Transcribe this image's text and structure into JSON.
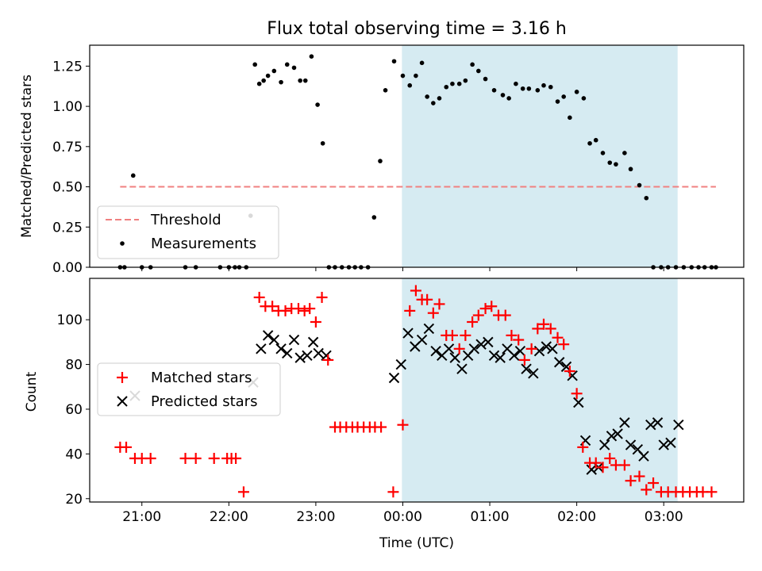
{
  "chart_data": [
    {
      "type": "scatter",
      "title": "Flux total observing time = 3.16 h",
      "xlabel": "",
      "ylabel": "Matched/Predicted stars",
      "x_unit": "hours since 00:00 UTC (x tick labels show clock time)",
      "xlim": [
        -3.6,
        3.92
      ],
      "ylim": [
        0,
        1.38
      ],
      "yticks": [
        "0.00",
        "0.25",
        "0.50",
        "0.75",
        "1.00",
        "1.25"
      ],
      "ytick_values": [
        0,
        0.25,
        0.5,
        0.75,
        1.0,
        1.25
      ],
      "highlight_span": {
        "x0": -0.01,
        "x1": 3.16,
        "color": "#add8e6"
      },
      "threshold": {
        "name": "Threshold",
        "value": 0.5,
        "x0": -3.25,
        "x1": 3.6,
        "color": "#f08080",
        "style": "dashed"
      },
      "legend": {
        "location": "lower-left",
        "entries": [
          "Threshold",
          "Measurements"
        ]
      },
      "series": [
        {
          "name": "Measurements",
          "marker": "dot",
          "color": "#000000",
          "x": [
            -3.25,
            -3.2,
            -3.1,
            -3.0,
            -2.9,
            -2.5,
            -2.38,
            -2.1,
            -2.0,
            -1.93,
            -1.88,
            -1.8,
            -1.75,
            -1.7,
            -1.65,
            -1.6,
            -1.55,
            -1.48,
            -1.4,
            -1.33,
            -1.25,
            -1.18,
            -1.12,
            -1.05,
            -0.98,
            -0.92,
            -0.85,
            -0.78,
            -0.7,
            -0.62,
            -0.55,
            -0.48,
            -0.4,
            -0.33,
            -0.26,
            -0.2,
            -0.1,
            0.0,
            0.08,
            0.15,
            0.22,
            0.28,
            0.35,
            0.42,
            0.5,
            0.57,
            0.65,
            0.72,
            0.8,
            0.87,
            0.95,
            1.05,
            1.15,
            1.22,
            1.3,
            1.38,
            1.45,
            1.55,
            1.62,
            1.7,
            1.78,
            1.85,
            1.92,
            2.0,
            2.08,
            2.15,
            2.22,
            2.3,
            2.38,
            2.45,
            2.55,
            2.62,
            2.72,
            2.8,
            2.88,
            2.97,
            3.05,
            3.14,
            3.23,
            3.32,
            3.4,
            3.47,
            3.55,
            3.6
          ],
          "y": [
            0,
            0,
            0.57,
            0,
            0,
            0,
            0,
            0,
            0,
            0,
            0,
            0,
            0.32,
            1.26,
            1.14,
            1.16,
            1.19,
            1.22,
            1.15,
            1.26,
            1.24,
            1.16,
            1.16,
            1.31,
            1.01,
            0.77,
            0,
            0,
            0,
            0,
            0,
            0,
            0,
            0.31,
            0.66,
            1.1,
            1.28,
            1.19,
            1.13,
            1.19,
            1.27,
            1.06,
            1.02,
            1.05,
            1.12,
            1.14,
            1.14,
            1.16,
            1.26,
            1.22,
            1.17,
            1.1,
            1.07,
            1.05,
            1.14,
            1.11,
            1.11,
            1.1,
            1.13,
            1.12,
            1.03,
            1.06,
            0.93,
            1.09,
            1.05,
            0.77,
            0.79,
            0.71,
            0.65,
            0.64,
            0.71,
            0.61,
            0.51,
            0.43,
            0,
            0,
            0,
            0,
            0,
            0,
            0,
            0,
            0,
            0
          ]
        }
      ]
    },
    {
      "type": "scatter",
      "title": "",
      "xlabel": "Time (UTC)",
      "ylabel": "Count",
      "x_unit": "hours since 00:00 UTC (x tick labels show clock time)",
      "xlim": [
        -3.6,
        3.92
      ],
      "ylim": [
        18.5,
        118.5
      ],
      "xticks": [
        "21:00",
        "22:00",
        "23:00",
        "00:00",
        "01:00",
        "02:00",
        "03:00"
      ],
      "xtick_values": [
        -3,
        -2,
        -1,
        0,
        1,
        2,
        3
      ],
      "yticks": [
        "20",
        "40",
        "60",
        "80",
        "100"
      ],
      "ytick_values": [
        20,
        40,
        60,
        80,
        100
      ],
      "highlight_span": {
        "x0": -0.01,
        "x1": 3.16,
        "color": "#add8e6"
      },
      "legend": {
        "location": "center-left",
        "entries": [
          "Matched stars",
          "Predicted stars"
        ]
      },
      "series": [
        {
          "name": "Matched stars",
          "marker": "plus",
          "color": "#ff0000",
          "x": [
            -3.25,
            -3.18,
            -3.08,
            -3.0,
            -2.9,
            -2.5,
            -2.38,
            -2.17,
            -2.02,
            -1.97,
            -1.92,
            -1.83,
            -1.65,
            -1.58,
            -1.5,
            -1.43,
            -1.35,
            -1.28,
            -1.2,
            -1.13,
            -1.07,
            -1.0,
            -0.93,
            -0.86,
            -0.78,
            -0.72,
            -0.65,
            -0.58,
            -0.52,
            -0.45,
            -0.38,
            -0.32,
            -0.25,
            -0.11,
            0.0,
            0.08,
            0.15,
            0.22,
            0.28,
            0.35,
            0.42,
            0.5,
            0.57,
            0.65,
            0.72,
            0.8,
            0.87,
            0.95,
            1.02,
            1.1,
            1.18,
            1.25,
            1.33,
            1.4,
            1.48,
            1.55,
            1.62,
            1.7,
            1.78,
            1.85,
            1.92,
            2.0,
            2.07,
            2.15,
            2.22,
            2.3,
            2.38,
            2.45,
            2.55,
            2.62,
            2.72,
            2.8,
            2.88,
            2.97,
            3.05,
            3.14,
            3.22,
            3.3,
            3.38,
            3.45,
            3.55
          ],
          "y": [
            43,
            43,
            38,
            38,
            38,
            38,
            38,
            38,
            38,
            38,
            38,
            23,
            110,
            106,
            106,
            104,
            104,
            105,
            105,
            104,
            105,
            99,
            110,
            82,
            52,
            52,
            52,
            52,
            52,
            52,
            52,
            52,
            52,
            23,
            53,
            104,
            113,
            109,
            109,
            103,
            107,
            93,
            93,
            87,
            93,
            99,
            102,
            105,
            106,
            102,
            102,
            93,
            91,
            82,
            87,
            96,
            98,
            96,
            92,
            89,
            77,
            67,
            43,
            36,
            36,
            34,
            38,
            35,
            35,
            28,
            30,
            24,
            27,
            23,
            23,
            23,
            23,
            23,
            23,
            23,
            23
          ],
          "extra_points": [
            [
              3.22,
              23
            ],
            [
              3.3,
              23
            ],
            [
              3.38,
              23
            ]
          ]
        },
        {
          "name": "Predicted stars",
          "marker": "x",
          "color": "#000000",
          "x": [
            -3.08,
            -1.72,
            -1.63,
            -1.55,
            -1.48,
            -1.4,
            -1.33,
            -1.25,
            -1.18,
            -1.1,
            -1.03,
            -0.97,
            -0.88,
            -0.1,
            -0.02,
            0.06,
            0.14,
            0.22,
            0.3,
            0.38,
            0.45,
            0.53,
            0.6,
            0.68,
            0.75,
            0.82,
            0.9,
            0.98,
            1.05,
            1.12,
            1.2,
            1.28,
            1.35,
            1.42,
            1.5,
            1.57,
            1.65,
            1.72,
            1.8,
            1.88,
            1.95,
            2.02,
            2.1,
            2.17,
            2.25,
            2.32,
            2.4,
            2.47,
            2.55,
            2.62,
            2.7,
            2.77,
            2.85,
            2.93,
            3.0,
            3.08,
            3.17
          ],
          "y": [
            66,
            72,
            87,
            93,
            91,
            87,
            85,
            91,
            83,
            84,
            90,
            85,
            84,
            74,
            80,
            94,
            88,
            91,
            96,
            86,
            84,
            87,
            83,
            78,
            84,
            87,
            89,
            90,
            84,
            83,
            87,
            84,
            86,
            78,
            76,
            86,
            88,
            87,
            81,
            79,
            75,
            63,
            46,
            33,
            34,
            44,
            48,
            49,
            54,
            44,
            42,
            39,
            53,
            54,
            44,
            45,
            53
          ],
          "extra_points": []
        }
      ]
    }
  ]
}
